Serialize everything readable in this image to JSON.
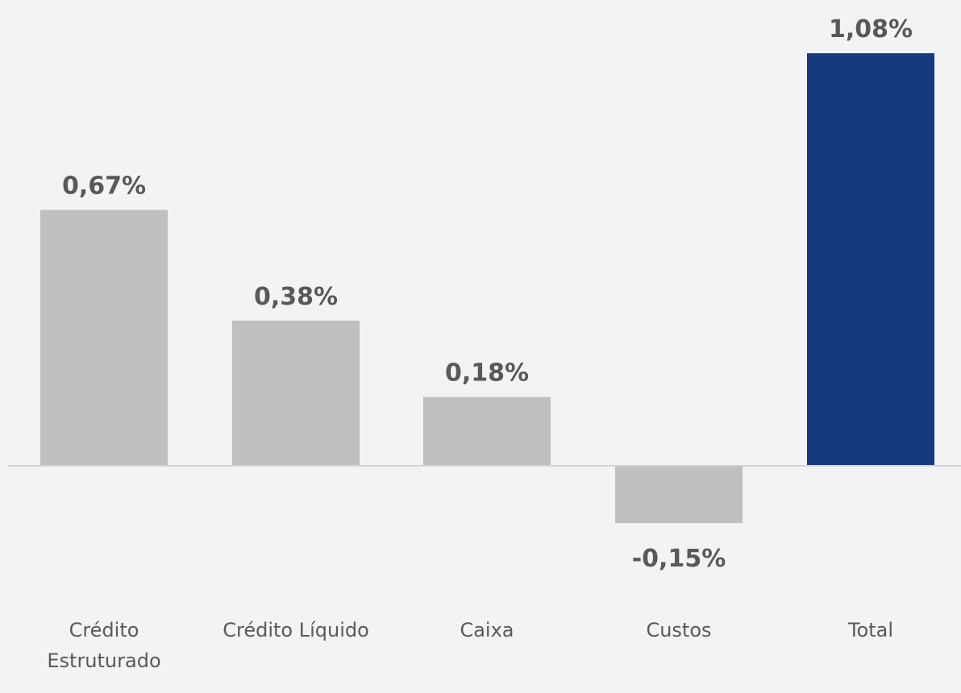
{
  "chart_data": {
    "type": "bar",
    "categories": [
      [
        "Crédito",
        "Estruturado"
      ],
      [
        "Crédito Líquido"
      ],
      [
        "Caixa"
      ],
      [
        "Custos"
      ],
      [
        "Total"
      ]
    ],
    "values": [
      0.67,
      0.38,
      0.18,
      -0.15,
      1.08
    ],
    "value_labels": [
      "0,67%",
      "0,38%",
      "0,18%",
      "-0,15%",
      "1,08%"
    ],
    "colors": [
      "#bfbfbf",
      "#bfbfbf",
      "#bfbfbf",
      "#bfbfbf",
      "#173a7e"
    ],
    "axis_color": "#d0d3d8",
    "grid": false,
    "legend": "none",
    "ylim": [
      -0.15,
      1.08
    ]
  }
}
